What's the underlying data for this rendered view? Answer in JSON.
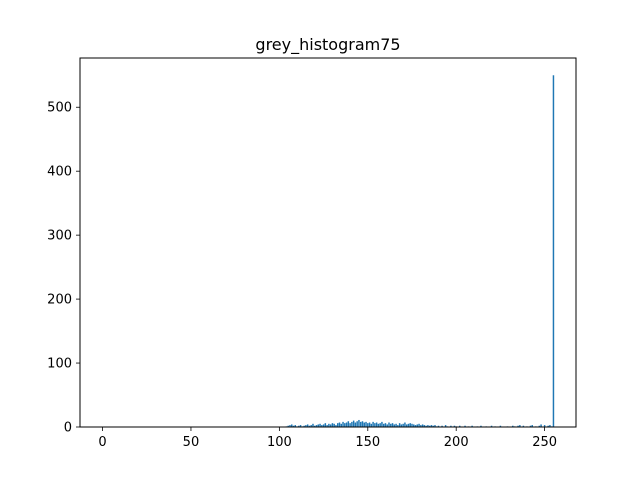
{
  "chart_data": {
    "type": "bar",
    "title": "grey_histogram75",
    "xlabel": "",
    "ylabel": "",
    "xlim": [
      -12.75,
      267.75
    ],
    "ylim": [
      0,
      577
    ],
    "x_ticks": [
      0,
      50,
      100,
      150,
      200,
      250
    ],
    "y_ticks": [
      0,
      100,
      200,
      300,
      400,
      500
    ],
    "grid": false,
    "bar_color": "#1f77b4",
    "bins": {
      "x": [
        104,
        105,
        106,
        107,
        108,
        109,
        110,
        111,
        112,
        113,
        114,
        115,
        116,
        117,
        118,
        119,
        120,
        121,
        122,
        123,
        124,
        125,
        126,
        127,
        128,
        129,
        130,
        131,
        132,
        133,
        134,
        135,
        136,
        137,
        138,
        139,
        140,
        141,
        142,
        143,
        144,
        145,
        146,
        147,
        148,
        149,
        150,
        151,
        152,
        153,
        154,
        155,
        156,
        157,
        158,
        159,
        160,
        161,
        162,
        163,
        164,
        165,
        166,
        167,
        168,
        169,
        170,
        171,
        172,
        173,
        174,
        175,
        176,
        177,
        178,
        179,
        180,
        181,
        182,
        183,
        184,
        185,
        186,
        187,
        188,
        189,
        190,
        192,
        194,
        195,
        197,
        199,
        200,
        202,
        205,
        207,
        209,
        212,
        214,
        217,
        220,
        222,
        225,
        229,
        232,
        233,
        235,
        236,
        238,
        240,
        242,
        243,
        245,
        247,
        248,
        250,
        252,
        253,
        254,
        255
      ],
      "values": [
        1,
        2,
        3,
        4,
        2,
        3,
        1,
        2,
        3,
        1,
        2,
        3,
        4,
        2,
        3,
        5,
        2,
        3,
        4,
        5,
        3,
        4,
        6,
        3,
        5,
        4,
        6,
        5,
        3,
        6,
        7,
        5,
        8,
        6,
        7,
        9,
        6,
        8,
        10,
        7,
        9,
        11,
        8,
        9,
        7,
        8,
        6,
        7,
        5,
        8,
        6,
        7,
        5,
        6,
        8,
        5,
        6,
        4,
        7,
        5,
        6,
        4,
        5,
        3,
        6,
        4,
        5,
        7,
        4,
        5,
        6,
        5,
        4,
        3,
        4,
        5,
        3,
        4,
        3,
        2,
        3,
        2,
        3,
        2,
        3,
        1,
        2,
        2,
        3,
        1,
        2,
        2,
        1,
        2,
        2,
        1,
        2,
        1,
        2,
        1,
        2,
        1,
        2,
        1,
        2,
        1,
        2,
        3,
        2,
        1,
        2,
        3,
        1,
        2,
        4,
        3,
        2,
        3,
        1,
        550
      ]
    }
  }
}
